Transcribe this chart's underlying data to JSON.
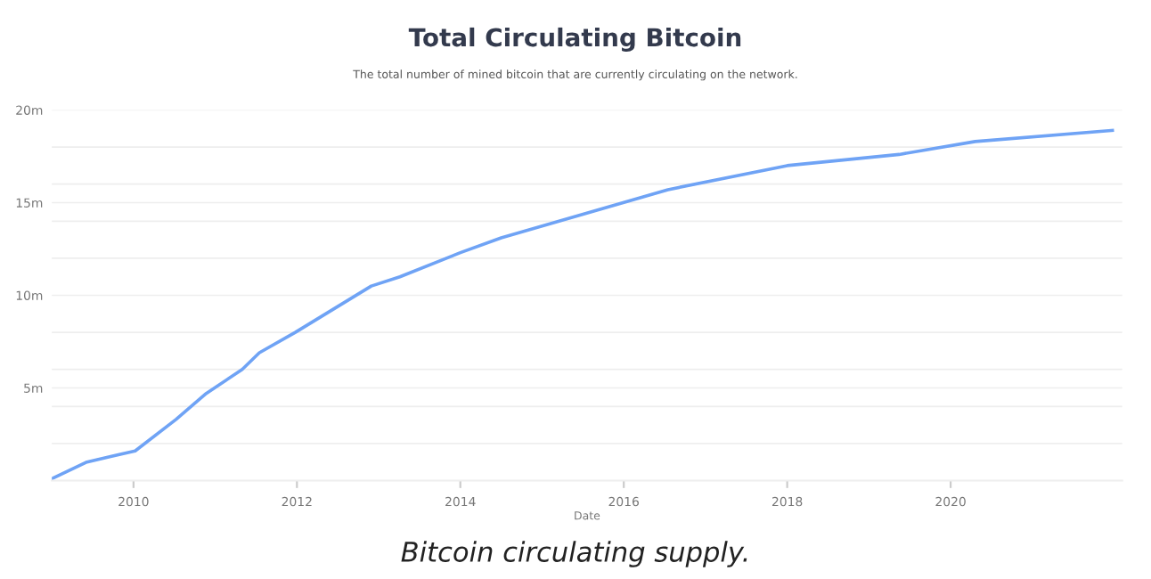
{
  "chart_data": {
    "type": "line",
    "title": "Total Circulating Bitcoin",
    "subtitle": "The total number of mined bitcoin that are currently circulating on the network.",
    "xlabel": "Date",
    "annotations": [
      "Bitcoin circulating supply."
    ],
    "x": [
      2009.0,
      2009.43,
      2009.72,
      2010.02,
      2010.52,
      2010.89,
      2011.33,
      2011.54,
      2011.98,
      2012.91,
      2013.26,
      2014.0,
      2014.5,
      2015.52,
      2016.54,
      2018.0,
      2019.37,
      2020.3,
      2021.98
    ],
    "series": [
      {
        "color": "#6fa3f5",
        "values": [
          0.1,
          1.0,
          1.3,
          1.6,
          3.3,
          4.7,
          6.0,
          6.9,
          8.0,
          10.5,
          11.0,
          12.3,
          13.1,
          14.4,
          15.7,
          17.0,
          17.6,
          18.3,
          18.9
        ]
      }
    ],
    "xlim": [
      2009.0,
      2022.1
    ],
    "xticks": [
      2010,
      2012,
      2014,
      2016,
      2018,
      2020
    ],
    "ylim": [
      0,
      20
    ],
    "yticks": [
      {
        "value": 2,
        "label": null
      },
      {
        "value": 4,
        "label": null
      },
      {
        "value": 5,
        "label": "5m"
      },
      {
        "value": 6,
        "label": null
      },
      {
        "value": 8,
        "label": null
      },
      {
        "value": 10,
        "label": "10m"
      },
      {
        "value": 12,
        "label": null
      },
      {
        "value": 14,
        "label": null
      },
      {
        "value": 15,
        "label": "15m"
      },
      {
        "value": 16,
        "label": null
      },
      {
        "value": 18,
        "label": null
      },
      {
        "value": 20,
        "label": "20m"
      }
    ],
    "grid": "y",
    "marker": "none",
    "line_style": "solid",
    "legend": false
  }
}
